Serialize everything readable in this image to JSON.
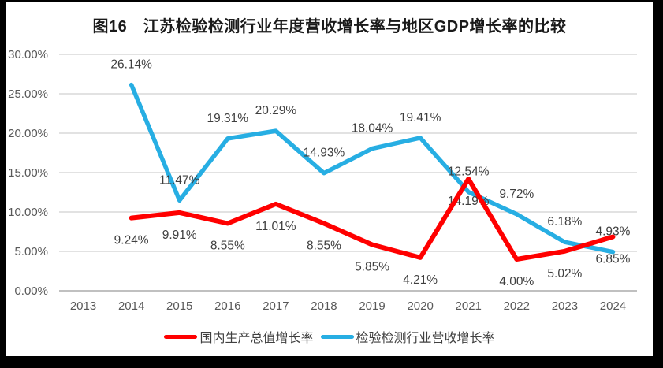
{
  "title": "图16　江苏检验检测行业年度营收增长率与地区GDP增长率的比较",
  "colors": {
    "frame": "#000000",
    "card": "#ffffff",
    "grid": "#d9d9d9",
    "baseline": "#c0c0c0",
    "axis_text": "#595959",
    "data_label": "#3f3f3f",
    "legend_text": "#404040"
  },
  "chart_data": {
    "type": "line",
    "title": "图16　江苏检验检测行业年度营收增长率与地区GDP增长率的比较",
    "categories": [
      "2013",
      "2014",
      "2015",
      "2016",
      "2017",
      "2018",
      "2019",
      "2020",
      "2021",
      "2022",
      "2023",
      "2024"
    ],
    "series": [
      {
        "name": "国内生产总值增长率",
        "color": "#ff0000",
        "stroke_width": 6,
        "label_position": "below",
        "values": [
          null,
          9.24,
          9.91,
          8.55,
          11.01,
          8.55,
          5.85,
          4.21,
          14.19,
          4.0,
          5.02,
          6.85
        ]
      },
      {
        "name": "检验检测行业营收增长率",
        "color": "#27aee3",
        "stroke_width": 5.5,
        "label_position": "above",
        "values": [
          null,
          26.14,
          11.47,
          19.31,
          20.29,
          14.93,
          18.04,
          19.41,
          12.54,
          9.72,
          6.18,
          4.93
        ]
      }
    ],
    "ylim": [
      0,
      30
    ],
    "ytick_step": 5,
    "yticks": [
      "0.00%",
      "5.00%",
      "10.00%",
      "15.00%",
      "20.00%",
      "25.00%",
      "30.00%"
    ],
    "value_suffix": "%",
    "decimals": 2,
    "grid": true,
    "legend_position": "bottom"
  }
}
